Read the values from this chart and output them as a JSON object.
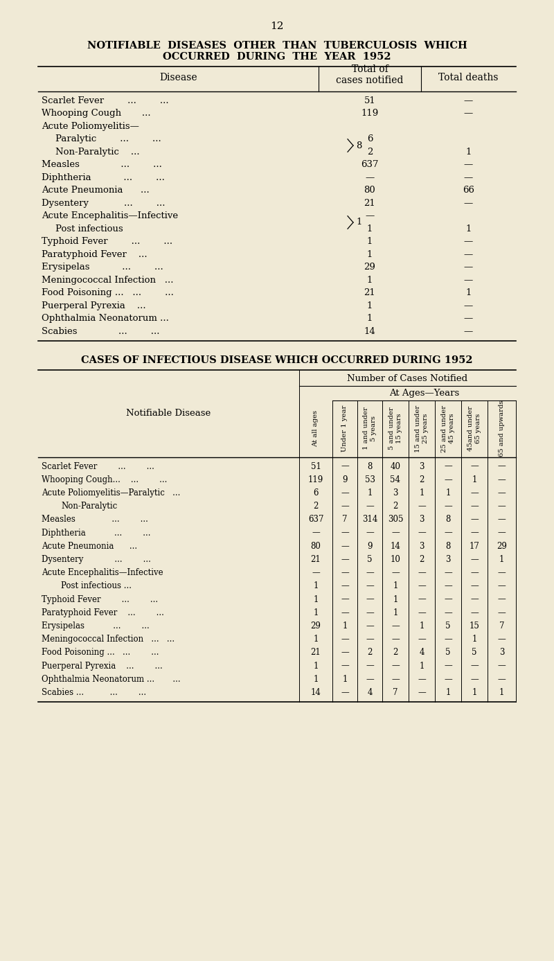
{
  "bg_color": "#f0ead6",
  "page_number": "12",
  "table1": {
    "title_line1": "NOTIFIABLE  DISEASES  OTHER  THAN  TUBERCULOSIS  WHICH",
    "title_line2": "OCCURRED  DURING  THE  YEAR  1952",
    "rows": [
      {
        "disease": "Scarlet Fever        ...        ...",
        "cases": "51",
        "deaths": "—",
        "indent": false
      },
      {
        "disease": "Whooping Cough       ...",
        "cases": "119",
        "deaths": "—",
        "indent": false
      },
      {
        "disease": "Acute Poliomyelitis—",
        "cases": "",
        "deaths": "",
        "indent": false
      },
      {
        "disease": "Paralytic        ...        ...",
        "cases": "6",
        "deaths": "",
        "indent": true
      },
      {
        "disease": "Non-Paralytic    ...",
        "cases": "2",
        "deaths": "1",
        "indent": true,
        "bracket": true
      },
      {
        "disease": "Measles              ...        ...",
        "cases": "637",
        "deaths": "—",
        "indent": false
      },
      {
        "disease": "Diphtheria           ...        ...",
        "cases": "—",
        "deaths": "—",
        "indent": false
      },
      {
        "disease": "Acute Pneumonia      ...",
        "cases": "80",
        "deaths": "66",
        "indent": false
      },
      {
        "disease": "Dysentery            ...        ...",
        "cases": "21",
        "deaths": "—",
        "indent": false
      },
      {
        "disease": "Acute Encephalitis—Infective",
        "cases": "—",
        "deaths": "",
        "indent": false
      },
      {
        "disease": "Post infectious",
        "cases": "1",
        "deaths": "1",
        "indent": true,
        "bracket2": true
      },
      {
        "disease": "Typhoid Fever        ...        ...",
        "cases": "1",
        "deaths": "—",
        "indent": false
      },
      {
        "disease": "Paratyphoid Fever    ...",
        "cases": "1",
        "deaths": "—",
        "indent": false
      },
      {
        "disease": "Erysipelas           ...        ...",
        "cases": "29",
        "deaths": "—",
        "indent": false
      },
      {
        "disease": "Meningococcal Infection   ...",
        "cases": "1",
        "deaths": "—",
        "indent": false
      },
      {
        "disease": "Food Poisoning ...   ...        ...",
        "cases": "21",
        "deaths": "1",
        "indent": false
      },
      {
        "disease": "Puerperal Pyrexia    ...",
        "cases": "1",
        "deaths": "—",
        "indent": false
      },
      {
        "disease": "Ophthalmia Neonatorum ...",
        "cases": "1",
        "deaths": "—",
        "indent": false
      },
      {
        "disease": "Scabies              ...        ...",
        "cases": "14",
        "deaths": "—",
        "indent": false
      }
    ]
  },
  "table2": {
    "title": "CASES OF INFECTIOUS DISEASE WHICH OCCURRED DURING 1952",
    "col_header_labels": [
      "At all ages",
      "Under 1 year",
      "1 and under\n5 years",
      "5 and under\n15 years",
      "15 and under\n25 years",
      "25 and under\n45 years",
      "45and under\n65 years",
      "65 and upwards"
    ],
    "rows": [
      {
        "disease": "Scarlet Fever        ...        ...",
        "indent": false,
        "vals": [
          "51",
          "—",
          "8",
          "40",
          "3",
          "—",
          "—",
          "—"
        ]
      },
      {
        "disease": "Whooping Cough...    ...        ...",
        "indent": false,
        "vals": [
          "119",
          "9",
          "53",
          "54",
          "2",
          "—",
          "1",
          "—"
        ]
      },
      {
        "disease": "Acute Poliomyelitis—Paralytic   ...",
        "indent": false,
        "vals": [
          "6",
          "—",
          "1",
          "3",
          "1",
          "1",
          "—",
          "—"
        ]
      },
      {
        "disease": "Non-Paralytic",
        "indent": true,
        "vals": [
          "2",
          "—",
          "—",
          "2",
          "—",
          "—",
          "—",
          "—"
        ]
      },
      {
        "disease": "Measles              ...        ...",
        "indent": false,
        "vals": [
          "637",
          "7",
          "314",
          "305",
          "3",
          "8",
          "—",
          "—"
        ]
      },
      {
        "disease": "Diphtheria           ...        ...",
        "indent": false,
        "vals": [
          "—",
          "—",
          "—",
          "—",
          "—",
          "—",
          "—",
          "—"
        ]
      },
      {
        "disease": "Acute Pneumonia      ...",
        "indent": false,
        "vals": [
          "80",
          "—",
          "9",
          "14",
          "3",
          "8",
          "17",
          "29"
        ]
      },
      {
        "disease": "Dysentery            ...        ...",
        "indent": false,
        "vals": [
          "21",
          "—",
          "5",
          "10",
          "2",
          "3",
          "—",
          "1"
        ]
      },
      {
        "disease": "Acute Encephalitis—Infective",
        "indent": false,
        "vals": [
          "—",
          "—",
          "—",
          "—",
          "—",
          "—",
          "—",
          "—"
        ]
      },
      {
        "disease": "Post infectious ...",
        "indent": true,
        "vals": [
          "1",
          "—",
          "—",
          "1",
          "—",
          "—",
          "—",
          "—"
        ]
      },
      {
        "disease": "Typhoid Fever        ...        ...",
        "indent": false,
        "vals": [
          "1",
          "—",
          "—",
          "1",
          "—",
          "—",
          "—",
          "—"
        ]
      },
      {
        "disease": "Paratyphoid Fever    ...        ...",
        "indent": false,
        "vals": [
          "1",
          "—",
          "—",
          "1",
          "—",
          "—",
          "—",
          "—"
        ]
      },
      {
        "disease": "Erysipelas           ...        ...",
        "indent": false,
        "vals": [
          "29",
          "1",
          "—",
          "—",
          "1",
          "5",
          "15",
          "7"
        ]
      },
      {
        "disease": "Meningococcal Infection   ...   ...",
        "indent": false,
        "vals": [
          "1",
          "—",
          "—",
          "—",
          "—",
          "—",
          "1",
          "—"
        ]
      },
      {
        "disease": "Food Poisoning ...   ...        ...",
        "indent": false,
        "vals": [
          "21",
          "—",
          "2",
          "2",
          "4",
          "5",
          "5",
          "3"
        ]
      },
      {
        "disease": "Puerperal Pyrexia    ...        ...",
        "indent": false,
        "vals": [
          "1",
          "—",
          "—",
          "—",
          "1",
          "—",
          "—",
          "—"
        ]
      },
      {
        "disease": "Ophthalmia Neonatorum ...       ...",
        "indent": false,
        "vals": [
          "1",
          "1",
          "—",
          "—",
          "—",
          "—",
          "—",
          "—"
        ]
      },
      {
        "disease": "Scabies ...          ...        ...",
        "indent": false,
        "vals": [
          "14",
          "—",
          "4",
          "7",
          "—",
          "1",
          "1",
          "1"
        ]
      }
    ]
  }
}
